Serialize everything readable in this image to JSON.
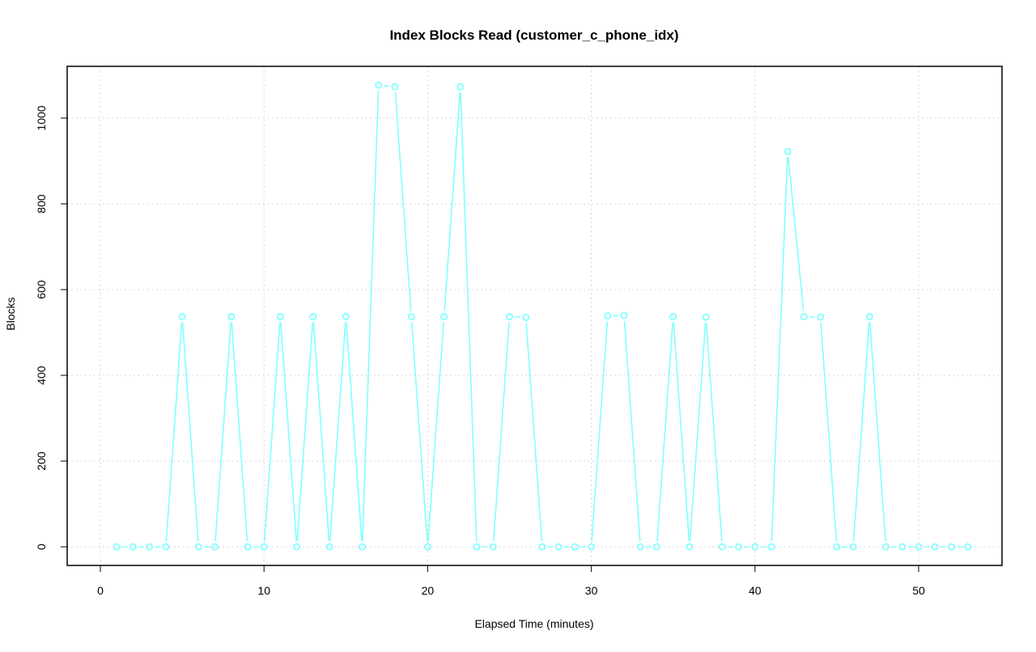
{
  "chart_data": {
    "type": "line",
    "title": "Index Blocks Read (customer_c_phone_idx)",
    "xlabel": "Elapsed Time (minutes)",
    "ylabel": "Blocks",
    "xlim": [
      -2,
      55
    ],
    "ylim": [
      -40,
      1110
    ],
    "xticks": [
      0,
      10,
      20,
      30,
      40,
      50
    ],
    "yticks": [
      0,
      200,
      400,
      600,
      800,
      1000
    ],
    "grid": true,
    "color": "#80ffff",
    "x": [
      1,
      2,
      3,
      4,
      5,
      6,
      7,
      8,
      9,
      10,
      11,
      12,
      13,
      14,
      15,
      16,
      17,
      18,
      19,
      20,
      21,
      22,
      23,
      24,
      25,
      26,
      27,
      28,
      29,
      30,
      31,
      32,
      33,
      34,
      35,
      36,
      37,
      38,
      39,
      40,
      41,
      42,
      43,
      44,
      45,
      46,
      47,
      48,
      49,
      50,
      51,
      52,
      53
    ],
    "values": [
      0,
      0,
      0,
      0,
      537,
      0,
      0,
      537,
      0,
      0,
      537,
      0,
      537,
      0,
      537,
      0,
      1077,
      1073,
      537,
      0,
      537,
      1073,
      0,
      0,
      537,
      535,
      0,
      0,
      0,
      0,
      539,
      540,
      0,
      0,
      537,
      0,
      536,
      0,
      0,
      0,
      0,
      922,
      537,
      536,
      0,
      0,
      537,
      0,
      0,
      0,
      0,
      0,
      0
    ]
  }
}
